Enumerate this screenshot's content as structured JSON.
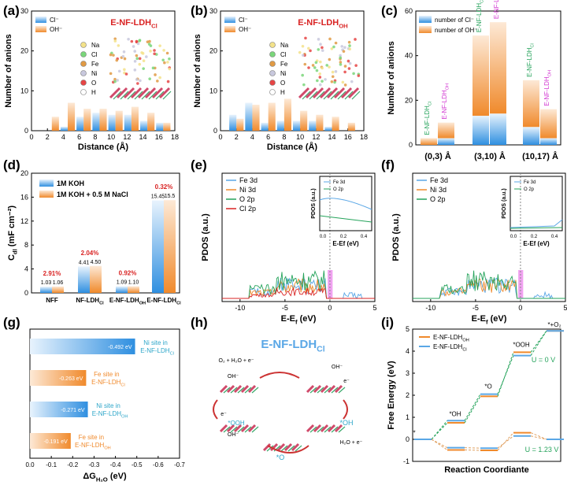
{
  "colors": {
    "blue": "#2f8fe0",
    "orange": "#f08a2c",
    "red": "#d92323",
    "green": "#25a35b",
    "magenta": "#d238d2",
    "teal": "#2da6c9",
    "lightblue": "#5aa7e6"
  },
  "panel_labels": [
    "(a)",
    "(b)",
    "(c)",
    "(d)",
    "(e)",
    "(f)",
    "(g)",
    "(h)",
    "(i)"
  ],
  "chart_data": [
    {
      "id": "a",
      "type": "bar",
      "title": "E-NF-LDH",
      "title_sub": "Cl",
      "xlabel": "Distance (Å)",
      "ylabel": "Number of anions",
      "xlim": [
        0,
        18
      ],
      "ylim": [
        0,
        30
      ],
      "xticks": [
        0,
        2,
        4,
        6,
        8,
        10,
        12,
        14,
        16,
        18
      ],
      "yticks": [
        0,
        10,
        20,
        30
      ],
      "series": [
        {
          "name": "Cl⁻",
          "x": [
            3,
            5,
            7,
            9,
            11,
            13,
            15,
            17
          ],
          "values": [
            0,
            1,
            3.5,
            4.5,
            4,
            4,
            2.5,
            2
          ]
        },
        {
          "name": "OH⁻",
          "x": [
            3,
            5,
            7,
            9,
            11,
            13,
            15,
            17
          ],
          "values": [
            3.5,
            7,
            5.5,
            5.5,
            5,
            6,
            4.5,
            2
          ]
        }
      ],
      "structure_legend": [
        "Na",
        "Cl",
        "Fe",
        "Ni",
        "O",
        "H"
      ]
    },
    {
      "id": "b",
      "type": "bar",
      "title": "E-NF-LDH",
      "title_sub": "OH",
      "xlabel": "Distance (Å)",
      "ylabel": "Number of anions",
      "xlim": [
        0,
        18
      ],
      "ylim": [
        0,
        30
      ],
      "xticks": [
        0,
        2,
        4,
        6,
        8,
        10,
        12,
        14,
        16,
        18
      ],
      "yticks": [
        0,
        10,
        20,
        30
      ],
      "series": [
        {
          "name": "Cl⁻",
          "x": [
            2,
            4,
            6,
            8,
            10,
            12,
            14,
            16
          ],
          "values": [
            4,
            7,
            2,
            2.5,
            2.5,
            2.5,
            1,
            0
          ]
        },
        {
          "name": "OH⁻",
          "x": [
            2,
            4,
            6,
            8,
            10,
            12,
            14,
            16
          ],
          "values": [
            3,
            6.5,
            7,
            8,
            5,
            4,
            3.5,
            2
          ]
        }
      ],
      "structure_legend": [
        "Na",
        "Cl",
        "Fe",
        "Ni",
        "O",
        "H"
      ]
    },
    {
      "id": "c",
      "type": "bar",
      "ylabel": "Number of anions",
      "ylim": [
        0,
        60
      ],
      "yticks": [
        0,
        20,
        40,
        60
      ],
      "categories": [
        "(0,3) Å",
        "(3,10) Å",
        "(10,17) Å"
      ],
      "series": [
        {
          "name": "number of Cl⁻",
          "values": [
            [
              0,
              3
            ],
            [
              13,
              14
            ],
            [
              8,
              3
            ]
          ]
        },
        {
          "name": "number of OH⁻",
          "values": [
            [
              3,
              7
            ],
            [
              36,
              41
            ],
            [
              21,
              13
            ]
          ]
        }
      ],
      "bar_labels": [
        [
          "E-NF-LDH",
          "Cl"
        ],
        [
          "E-NF-LDH",
          "OH"
        ]
      ]
    },
    {
      "id": "d",
      "type": "bar",
      "ylabel": "C",
      "ylabel_sub": "dl",
      "ylabel_unit": " (mF cm⁻²)",
      "ylim": [
        0,
        20
      ],
      "yticks": [
        0,
        4,
        8,
        12,
        16,
        20
      ],
      "categories": [
        "NFF",
        "NF-LDH",
        "E-NF-LDH",
        "E-NF-LDH"
      ],
      "category_subs": [
        "",
        "Cl",
        "OH",
        "Cl"
      ],
      "series": [
        {
          "name": "1M KOH",
          "values": [
            1.03,
            4.41,
            1.09,
            15.45
          ]
        },
        {
          "name": "1M KOH + 0.5 M NaCl",
          "values": [
            1.06,
            4.5,
            1.1,
            15.5
          ]
        }
      ],
      "value_labels": [
        [
          "1.03",
          "1.06"
        ],
        [
          "4.41",
          "4.50"
        ],
        [
          "1.09",
          "1.10"
        ],
        [
          "15.45",
          "15.5"
        ]
      ],
      "pct_labels": [
        "2.91%",
        "2.04%",
        "0.92%",
        "0.32%"
      ]
    },
    {
      "id": "e",
      "type": "line",
      "xlabel": "E-E",
      "xlabel_sub": "f",
      "xlabel_unit": " (eV)",
      "ylabel": "PDOS (a.u.)",
      "xlim": [
        -12,
        5
      ],
      "xticks": [
        -10,
        -5,
        0,
        5
      ],
      "series": [
        {
          "name": "Fe 3d"
        },
        {
          "name": "Ni 3d"
        },
        {
          "name": "O 2p"
        },
        {
          "name": "Cl 2p"
        }
      ],
      "inset": {
        "ylabel": "PDOS (a.u.)",
        "xlabel": "E-Ef (eV)",
        "xticks": [
          "0.0",
          "0.2",
          "0.4"
        ],
        "legend": [
          "Fe 3d",
          "O 2p"
        ]
      }
    },
    {
      "id": "f",
      "type": "line",
      "xlabel": "E-E",
      "xlabel_sub": "f",
      "xlabel_unit": " (eV)",
      "ylabel": "PDOS (a.u.)",
      "xlim": [
        -12,
        5
      ],
      "xticks": [
        -10,
        -5,
        0,
        5
      ],
      "series": [
        {
          "name": "Fe 3d"
        },
        {
          "name": "Ni 3d"
        },
        {
          "name": "O 2p"
        }
      ],
      "inset": {
        "ylabel": "PDOS (a.u.)",
        "xlabel": "E-Ef (eV)",
        "xticks": [
          "0.0",
          "0.2",
          "0.4"
        ],
        "legend": [
          "Fe 3d",
          "O 2p"
        ]
      }
    },
    {
      "id": "g",
      "type": "bar",
      "orientation": "horizontal",
      "xlabel": "ΔG",
      "xlabel_sub": "H₂O",
      "xlabel_unit": " (eV)",
      "xlim": [
        0,
        -0.7
      ],
      "xticks": [
        "0.0",
        "-0.1",
        "-0.2",
        "-0.3",
        "-0.4",
        "-0.5",
        "-0.6",
        "-0.7"
      ],
      "bars": [
        {
          "value": -0.492,
          "label": "-0.492 eV",
          "text": [
            "Ni site in",
            "E-NF-LDH"
          ],
          "sub": "Cl"
        },
        {
          "value": -0.263,
          "label": "-0.263 eV",
          "text": [
            "Fe site in",
            "E-NF-LDH"
          ],
          "sub": "Cl"
        },
        {
          "value": -0.271,
          "label": "-0.271 eV",
          "text": [
            "Ni site in",
            "E-NF-LDH"
          ],
          "sub": "OH"
        },
        {
          "value": -0.191,
          "label": "-0.191 eV",
          "text": [
            "Fe site in",
            "E-NF-LDH"
          ],
          "sub": "OH"
        }
      ]
    },
    {
      "id": "i",
      "type": "line",
      "xlabel": "Reaction Coordiante",
      "ylabel": "Free Energy (eV)",
      "ylim": [
        -1,
        5
      ],
      "yticks": [
        -1,
        0,
        1,
        2,
        3,
        4,
        5
      ],
      "states": [
        "*",
        "*OH",
        "*O",
        "*OOH",
        "*+O₂"
      ],
      "series": [
        {
          "name": "E-NF-LDH",
          "sub": "OH",
          "values_u0": [
            0,
            0.75,
            1.95,
            3.95,
            4.92
          ],
          "values_u123": [
            0,
            -0.48,
            -0.5,
            0.3,
            0
          ]
        },
        {
          "name": "E-NF-LDH",
          "sub": "Cl",
          "values_u0": [
            0,
            0.85,
            2.05,
            3.8,
            4.92
          ],
          "values_u123": [
            0,
            -0.38,
            -0.4,
            0.15,
            0
          ]
        }
      ],
      "annotations": [
        "U = 0 V",
        "U = 1.23 V"
      ]
    }
  ],
  "diagram_h": {
    "title": "E-NF-LDH",
    "title_sub": "Cl",
    "labels": [
      "OH⁻",
      "e⁻",
      "*OH",
      "H₂O + e⁻",
      "*O",
      "OH⁻",
      "e⁻",
      "*OOH",
      "OH⁻",
      "e⁻"
    ],
    "o2_label": "O₂ + H₂O + e⁻"
  }
}
